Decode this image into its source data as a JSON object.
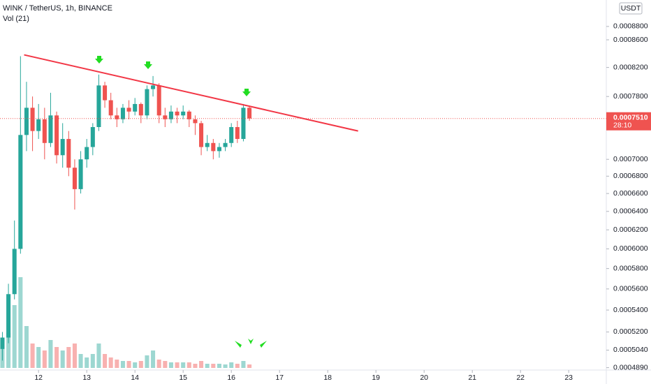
{
  "chart_data": {
    "type": "candlestick",
    "title": "WINK / TetherUS, 1h, BINANCE",
    "subtitle": "Vol (21)",
    "currency": "USDT",
    "log_scale": true,
    "up_color": "#26a69a",
    "down_color": "#ef5350",
    "x": [
      11.25,
      11.375,
      11.5,
      11.625,
      11.75,
      11.875,
      12.0,
      12.125,
      12.25,
      12.375,
      12.5,
      12.625,
      12.75,
      12.875,
      13.0,
      13.125,
      13.25,
      13.375,
      13.5,
      13.625,
      13.75,
      13.875,
      14.0,
      14.125,
      14.25,
      14.375,
      14.5,
      14.625,
      14.75,
      14.875,
      15.0,
      15.125,
      15.25,
      15.375,
      15.5,
      15.625,
      15.75,
      15.875,
      16.0,
      16.125,
      16.25,
      16.375
    ],
    "open": [
      0.000505,
      0.000515,
      0.000555,
      0.0006,
      0.00073,
      0.000765,
      0.000735,
      0.00075,
      0.00072,
      0.000755,
      0.000705,
      0.000725,
      0.00069,
      0.000665,
      0.0007,
      0.000715,
      0.00074,
      0.000795,
      0.000775,
      0.000755,
      0.00075,
      0.000765,
      0.00076,
      0.00077,
      0.000755,
      0.00079,
      0.000795,
      0.000755,
      0.00075,
      0.00076,
      0.000755,
      0.00076,
      0.00075,
      0.000745,
      0.000715,
      0.00072,
      0.00071,
      0.000715,
      0.00072,
      0.00074,
      0.000725,
      0.000765
    ],
    "high": [
      0.00052,
      0.000565,
      0.00063,
      0.000836,
      0.0008,
      0.00078,
      0.00077,
      0.000765,
      0.000785,
      0.00076,
      0.000745,
      0.000735,
      0.0007,
      0.00071,
      0.000725,
      0.000745,
      0.00081,
      0.0008,
      0.000785,
      0.000765,
      0.00077,
      0.000775,
      0.000778,
      0.000772,
      0.000795,
      0.000808,
      0.000798,
      0.000765,
      0.000768,
      0.000765,
      0.000768,
      0.000762,
      0.000755,
      0.000748,
      0.00073,
      0.000725,
      0.00072,
      0.000725,
      0.000745,
      0.000748,
      0.00077,
      0.000768
    ],
    "low": [
      0.000495,
      0.00051,
      0.00055,
      0.000595,
      0.00071,
      0.00071,
      0.000725,
      0.0007,
      0.000715,
      0.000695,
      0.00069,
      0.00068,
      0.000642,
      0.00066,
      0.00069,
      0.000705,
      0.000735,
      0.000765,
      0.00075,
      0.00074,
      0.000745,
      0.00075,
      0.000755,
      0.000745,
      0.00075,
      0.00078,
      0.000745,
      0.00074,
      0.000745,
      0.000745,
      0.00075,
      0.00074,
      0.00073,
      0.000705,
      0.00071,
      0.0007,
      0.000702,
      0.00071,
      0.000715,
      0.00072,
      0.000722,
      0.000748
    ],
    "close": [
      0.000515,
      0.000555,
      0.0006,
      0.00073,
      0.000765,
      0.000735,
      0.00075,
      0.00072,
      0.000755,
      0.000705,
      0.000725,
      0.00069,
      0.000665,
      0.0007,
      0.000715,
      0.00074,
      0.000795,
      0.000775,
      0.000755,
      0.00075,
      0.000765,
      0.00076,
      0.00077,
      0.000755,
      0.00079,
      0.000795,
      0.000755,
      0.00075,
      0.00076,
      0.000755,
      0.00076,
      0.00075,
      0.000745,
      0.000715,
      0.00072,
      0.00071,
      0.000715,
      0.00072,
      0.00074,
      0.000725,
      0.000765,
      0.000751
    ],
    "volume": [
      40,
      50,
      90,
      130,
      60,
      35,
      30,
      25,
      40,
      30,
      25,
      30,
      35,
      20,
      15,
      20,
      35,
      20,
      15,
      12,
      10,
      10,
      8,
      10,
      18,
      25,
      12,
      10,
      8,
      8,
      8,
      8,
      6,
      10,
      6,
      6,
      6,
      5,
      8,
      6,
      10,
      5
    ],
    "ylim": [
      0.000487,
      0.000921
    ],
    "yticks": [
      {
        "value": 0.00088,
        "label": "0.0008800"
      },
      {
        "value": 0.00086,
        "label": "0.0008600"
      },
      {
        "value": 0.00082,
        "label": "0.0008200"
      },
      {
        "value": 0.00078,
        "label": "0.0007800"
      },
      {
        "value": 0.0007,
        "label": "0.0007000"
      },
      {
        "value": 0.00068,
        "label": "0.0006800"
      },
      {
        "value": 0.00066,
        "label": "0.0006600"
      },
      {
        "value": 0.00064,
        "label": "0.0006400"
      },
      {
        "value": 0.00062,
        "label": "0.0006200"
      },
      {
        "value": 0.0006,
        "label": "0.0006000"
      },
      {
        "value": 0.00058,
        "label": "0.0005800"
      },
      {
        "value": 0.00056,
        "label": "0.0005600"
      },
      {
        "value": 0.00054,
        "label": "0.0005400"
      },
      {
        "value": 0.00052,
        "label": "0.0005200"
      },
      {
        "value": 0.000504,
        "label": "0.0005040"
      },
      {
        "value": 0.000489,
        "label": "0.0004890"
      }
    ],
    "xlim": [
      11.2,
      23.78
    ],
    "xticks": [
      12,
      13,
      14,
      15,
      16,
      17,
      18,
      19,
      20,
      21,
      22,
      23
    ],
    "last_price": {
      "value": 0.000751,
      "label": "0.0007510"
    },
    "countdown": "28:10",
    "trendline": {
      "x": [
        11.7,
        18.63
      ],
      "y": [
        0.000838,
        0.000735
      ],
      "color": "#f23645"
    }
  }
}
